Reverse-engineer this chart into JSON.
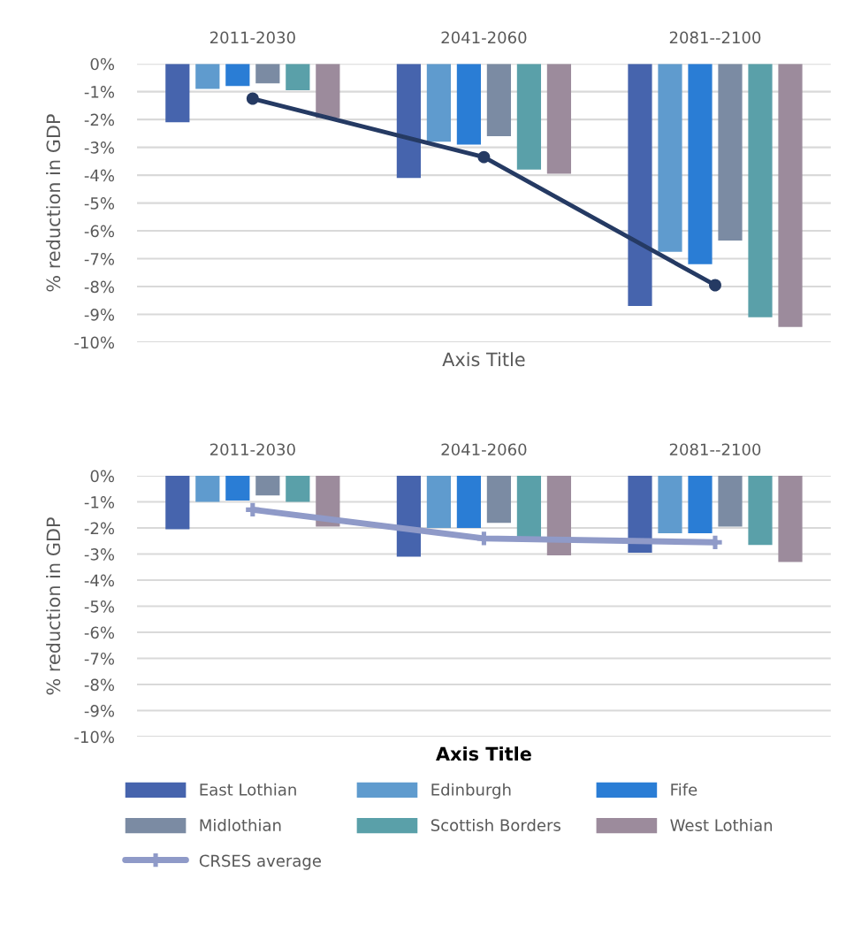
{
  "chart_data": [
    {
      "type": "bar",
      "categories": [
        "2011-2030",
        "2041-2060",
        "2081--2100"
      ],
      "ylabel": "% reduction in GDP",
      "xlabel": "Axis Title",
      "ylim": [
        -10,
        0
      ],
      "yticks": [
        {
          "value": 0,
          "label": "0%"
        },
        {
          "value": -1,
          "label": "-1%"
        },
        {
          "value": -2,
          "label": "-2%"
        },
        {
          "value": -3,
          "label": "-3%"
        },
        {
          "value": -4,
          "label": "-4%"
        },
        {
          "value": -5,
          "label": "-5%"
        },
        {
          "value": -6,
          "label": "-6%"
        },
        {
          "value": -7,
          "label": "-7%"
        },
        {
          "value": -8,
          "label": "-8%"
        },
        {
          "value": -9,
          "label": "-9%"
        },
        {
          "value": -10,
          "label": "-10%"
        }
      ],
      "grid": "y",
      "legend": false,
      "series": [
        {
          "color": "#4664ad",
          "values": [
            -2.1,
            -4.1,
            -8.7
          ]
        },
        {
          "color": "#5f9bce",
          "values": [
            -0.9,
            -2.8,
            -6.75
          ]
        },
        {
          "color": "#2a7dd5",
          "values": [
            -0.8,
            -2.9,
            -7.2
          ]
        },
        {
          "color": "#7b8ba3",
          "values": [
            -0.7,
            -2.6,
            -6.35
          ]
        },
        {
          "color": "#5aa0a9",
          "values": [
            -0.95,
            -3.8,
            -9.1
          ]
        },
        {
          "color": "#9c8b9c",
          "values": [
            -1.95,
            -3.95,
            -9.45
          ]
        },
        {
          "type": "line",
          "color": "#253a63",
          "marker": "circle",
          "values": [
            -1.25,
            -3.35,
            -7.95
          ]
        }
      ]
    },
    {
      "type": "bar",
      "categories": [
        "2011-2030",
        "2041-2060",
        "2081--2100"
      ],
      "ylabel": "% reduction in GDP",
      "xlabel": "Axis Title",
      "ylim": [
        -10,
        0
      ],
      "yticks": [
        {
          "value": 0,
          "label": "0%"
        },
        {
          "value": -1,
          "label": "-1%"
        },
        {
          "value": -2,
          "label": "-2%"
        },
        {
          "value": -3,
          "label": "-3%"
        },
        {
          "value": -4,
          "label": "-4%"
        },
        {
          "value": -5,
          "label": "-5%"
        },
        {
          "value": -6,
          "label": "-6%"
        },
        {
          "value": -7,
          "label": "-7%"
        },
        {
          "value": -8,
          "label": "-8%"
        },
        {
          "value": -9,
          "label": "-9%"
        },
        {
          "value": -10,
          "label": "-10%"
        }
      ],
      "grid": "y",
      "legend": "bottom",
      "series": [
        {
          "name": "East Lothian",
          "color": "#4664ad",
          "values": [
            -2.05,
            -3.1,
            -2.95
          ]
        },
        {
          "name": "Edinburgh",
          "color": "#5f9bce",
          "values": [
            -1.0,
            -2.0,
            -2.2
          ]
        },
        {
          "name": "Fife",
          "color": "#2a7dd5",
          "values": [
            -0.95,
            -2.0,
            -2.2
          ]
        },
        {
          "name": "Midlothian",
          "color": "#7b8ba3",
          "values": [
            -0.75,
            -1.8,
            -1.95
          ]
        },
        {
          "name": "Scottish Borders",
          "color": "#5aa0a9",
          "values": [
            -1.0,
            -2.35,
            -2.65
          ]
        },
        {
          "name": "West Lothian",
          "color": "#9c8b9c",
          "values": [
            -1.95,
            -3.05,
            -3.3
          ]
        },
        {
          "name": "CRSES average",
          "type": "line",
          "color": "#8f9ac8",
          "marker": "cross",
          "values": [
            -1.3,
            -2.4,
            -2.55
          ]
        }
      ]
    }
  ]
}
